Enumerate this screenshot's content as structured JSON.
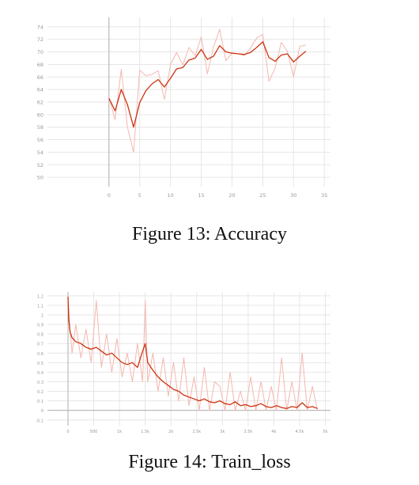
{
  "chart_data": [
    {
      "type": "line",
      "caption": "Figure 13:  Accuracy",
      "xlim": [
        -10,
        36
      ],
      "ylim": [
        48.5,
        75.5
      ],
      "x_ticks": [
        0,
        5,
        10,
        15,
        20,
        25,
        30,
        35
      ],
      "y_ticks": [
        50,
        52,
        54,
        56,
        58,
        60,
        62,
        64,
        66,
        68,
        70,
        72,
        74
      ],
      "grid": true,
      "series": [
        {
          "role": "smoothed",
          "color": "#cc3311",
          "x": [
            0,
            1,
            2,
            3,
            4,
            5,
            6,
            7,
            8,
            9,
            10,
            11,
            12,
            13,
            14,
            15,
            16,
            17,
            18,
            19,
            20,
            21,
            22,
            23,
            24,
            25,
            26,
            27,
            28,
            29,
            30,
            31,
            32
          ],
          "values": [
            62.6,
            60.6,
            64.0,
            61.6,
            58.0,
            61.9,
            63.8,
            64.9,
            65.6,
            64.4,
            65.8,
            67.3,
            67.5,
            68.7,
            69.0,
            70.4,
            68.8,
            69.3,
            71.0,
            70.0,
            69.8,
            69.7,
            69.6,
            69.9,
            70.7,
            71.6,
            69.1,
            68.5,
            69.5,
            69.7,
            68.4,
            69.3,
            70.1
          ]
        },
        {
          "role": "raw",
          "color": "#f5b7ae",
          "x": [
            0,
            1,
            2,
            3,
            4,
            5,
            6,
            7,
            8,
            9,
            10,
            11,
            12,
            13,
            14,
            15,
            16,
            17,
            18,
            19,
            20,
            21,
            22,
            23,
            24,
            25,
            26,
            27,
            28,
            29,
            30,
            31,
            32
          ],
          "values": [
            62.8,
            59.2,
            67.2,
            58.0,
            54.0,
            67.1,
            66.2,
            66.4,
            67.0,
            62.4,
            68.0,
            69.9,
            67.9,
            70.7,
            69.4,
            72.4,
            66.5,
            70.8,
            73.6,
            68.6,
            69.8,
            69.7,
            69.4,
            70.6,
            72.2,
            72.8,
            65.3,
            67.4,
            71.5,
            70.1,
            66.0,
            70.9,
            71.1
          ]
        }
      ]
    },
    {
      "type": "line",
      "caption": "Figure 14:  Train_loss",
      "xlim": [
        -400,
        5100
      ],
      "ylim": [
        -0.16,
        1.24
      ],
      "x_ticks": [
        0,
        500,
        1000,
        1500,
        2000,
        2500,
        3000,
        3500,
        4000,
        4500,
        5000
      ],
      "x_tick_labels": [
        "0",
        "500",
        "1k",
        "1.5k",
        "2k",
        "2.5k",
        "3k",
        "3.5k",
        "4k",
        "4.5k",
        "5k"
      ],
      "y_ticks": [
        -0.1,
        0,
        0.1,
        0.2,
        0.3,
        0.4,
        0.5,
        0.6,
        0.7,
        0.8,
        0.9,
        1,
        1.1,
        1.2
      ],
      "grid": true,
      "series": [
        {
          "role": "smoothed",
          "color": "#cc3311",
          "x": [
            0,
            15,
            40,
            80,
            150,
            250,
            350,
            450,
            550,
            650,
            750,
            850,
            950,
            1050,
            1150,
            1250,
            1350,
            1450,
            1500,
            1550,
            1650,
            1750,
            1850,
            1950,
            2050,
            2150,
            2250,
            2350,
            2450,
            2550,
            2650,
            2750,
            2850,
            2950,
            3050,
            3150,
            3250,
            3350,
            3450,
            3550,
            3650,
            3750,
            3850,
            3950,
            4050,
            4150,
            4250,
            4350,
            4450,
            4550,
            4650,
            4750,
            4850
          ],
          "values": [
            1.19,
            0.95,
            0.82,
            0.76,
            0.72,
            0.7,
            0.66,
            0.64,
            0.66,
            0.62,
            0.58,
            0.6,
            0.55,
            0.5,
            0.48,
            0.5,
            0.45,
            0.62,
            0.7,
            0.5,
            0.42,
            0.35,
            0.3,
            0.26,
            0.22,
            0.2,
            0.16,
            0.14,
            0.12,
            0.1,
            0.12,
            0.09,
            0.08,
            0.1,
            0.07,
            0.06,
            0.09,
            0.05,
            0.06,
            0.04,
            0.05,
            0.07,
            0.04,
            0.03,
            0.05,
            0.03,
            0.02,
            0.04,
            0.03,
            0.08,
            0.03,
            0.04,
            0.02
          ]
        },
        {
          "role": "raw",
          "color": "#f5b7ae",
          "x": [
            0,
            15,
            40,
            80,
            150,
            250,
            350,
            450,
            550,
            650,
            750,
            850,
            950,
            1050,
            1150,
            1250,
            1350,
            1450,
            1500,
            1550,
            1650,
            1750,
            1850,
            1950,
            2050,
            2150,
            2250,
            2350,
            2450,
            2550,
            2650,
            2750,
            2850,
            2950,
            3050,
            3150,
            3250,
            3350,
            3450,
            3550,
            3650,
            3750,
            3850,
            3950,
            4050,
            4150,
            4250,
            4350,
            4450,
            4550,
            4650,
            4750,
            4850
          ],
          "values": [
            1.15,
            1.05,
            0.85,
            0.6,
            0.9,
            0.55,
            0.85,
            0.5,
            1.15,
            0.45,
            0.8,
            0.4,
            0.75,
            0.35,
            0.6,
            0.3,
            0.7,
            0.3,
            1.15,
            0.3,
            0.6,
            0.2,
            0.55,
            0.15,
            0.5,
            0.1,
            0.55,
            0.05,
            0.35,
            0.0,
            0.45,
            0.0,
            0.3,
            0.25,
            0.0,
            0.4,
            0.0,
            0.2,
            0.0,
            0.35,
            0.0,
            0.3,
            0.0,
            0.25,
            0.0,
            0.55,
            0.0,
            0.3,
            0.0,
            0.6,
            0.0,
            0.25,
            0.0
          ]
        }
      ]
    }
  ]
}
